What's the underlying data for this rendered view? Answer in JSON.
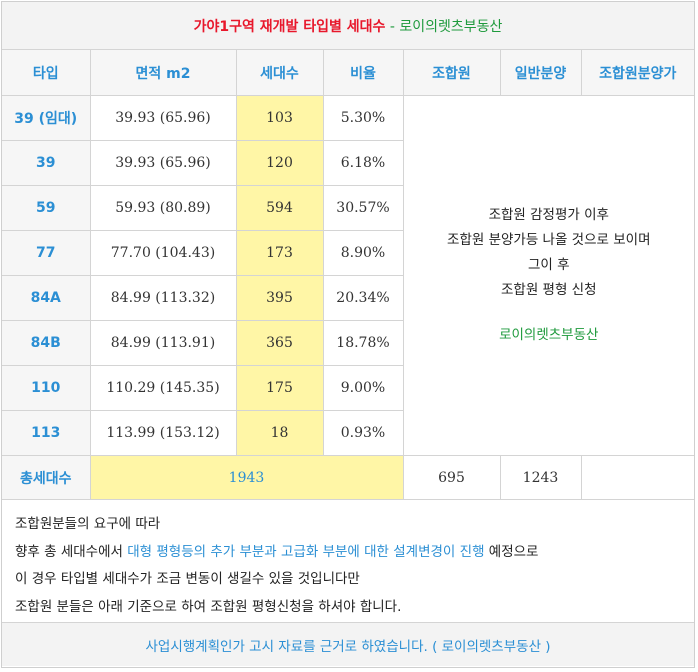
{
  "title": {
    "main": "가야1구역 재개발 타입별 세대수",
    "separator": " - ",
    "brand": "로이의렛츠부동산"
  },
  "headers": [
    "타입",
    "면적 m2",
    "세대수",
    "비율",
    "조합원",
    "일반분양",
    "조합원분양가"
  ],
  "rows": [
    {
      "type": "39 (임대)",
      "area": "39.93 (65.96)",
      "units": "103",
      "ratio": "5.30%"
    },
    {
      "type": "39",
      "area": "39.93 (65.96)",
      "units": "120",
      "ratio": "6.18%"
    },
    {
      "type": "59",
      "area": "59.93 (80.89)",
      "units": "594",
      "ratio": "30.57%"
    },
    {
      "type": "77",
      "area": "77.70 (104.43)",
      "units": "173",
      "ratio": "8.90%"
    },
    {
      "type": "84A",
      "area": "84.99 (113.32)",
      "units": "395",
      "ratio": "20.34%"
    },
    {
      "type": "84B",
      "area": "84.99 (113.91)",
      "units": "365",
      "ratio": "18.78%"
    },
    {
      "type": "110",
      "area": "110.29 (145.35)",
      "units": "175",
      "ratio": "9.00%"
    },
    {
      "type": "113",
      "area": "113.99 (153.12)",
      "units": "18",
      "ratio": "0.93%"
    }
  ],
  "merged_note": {
    "lines": [
      "조합원 감정평가 이후",
      "조합원 분양가등 나올 것으로 보이며",
      "그이 후",
      "조합원 평형 신청"
    ],
    "brand": "로이의렛츠부동산"
  },
  "total": {
    "label": "총세대수",
    "units": "1943",
    "members": "695",
    "general": "1243",
    "member_price": ""
  },
  "footer": {
    "line1": "조합원분들의 요구에 따라",
    "line2_prefix": "향후 총 세대수에서 ",
    "line2_highlight": "대형 평형등의 추가 부분과 고급화 부분에 대한 설계변경이 진행",
    "line2_suffix": " 예정으로",
    "line3": "이 경우 타입별 세대수가 조금 변동이 생길수 있을 것입니다만",
    "line4": "조합원 분들은 아래 기준으로 하여 조합원 평형신청을 하셔야 합니다.",
    "source": "사업시행계획인가 고시 자료를 근거로 하였습니다. ( 로이의렛츠부동산 )"
  },
  "colors": {
    "title_red": "#e8172b",
    "brand_green": "#1e9a3c",
    "accent_blue": "#2b8fd4",
    "highlight_yellow": "#fff6a6"
  }
}
